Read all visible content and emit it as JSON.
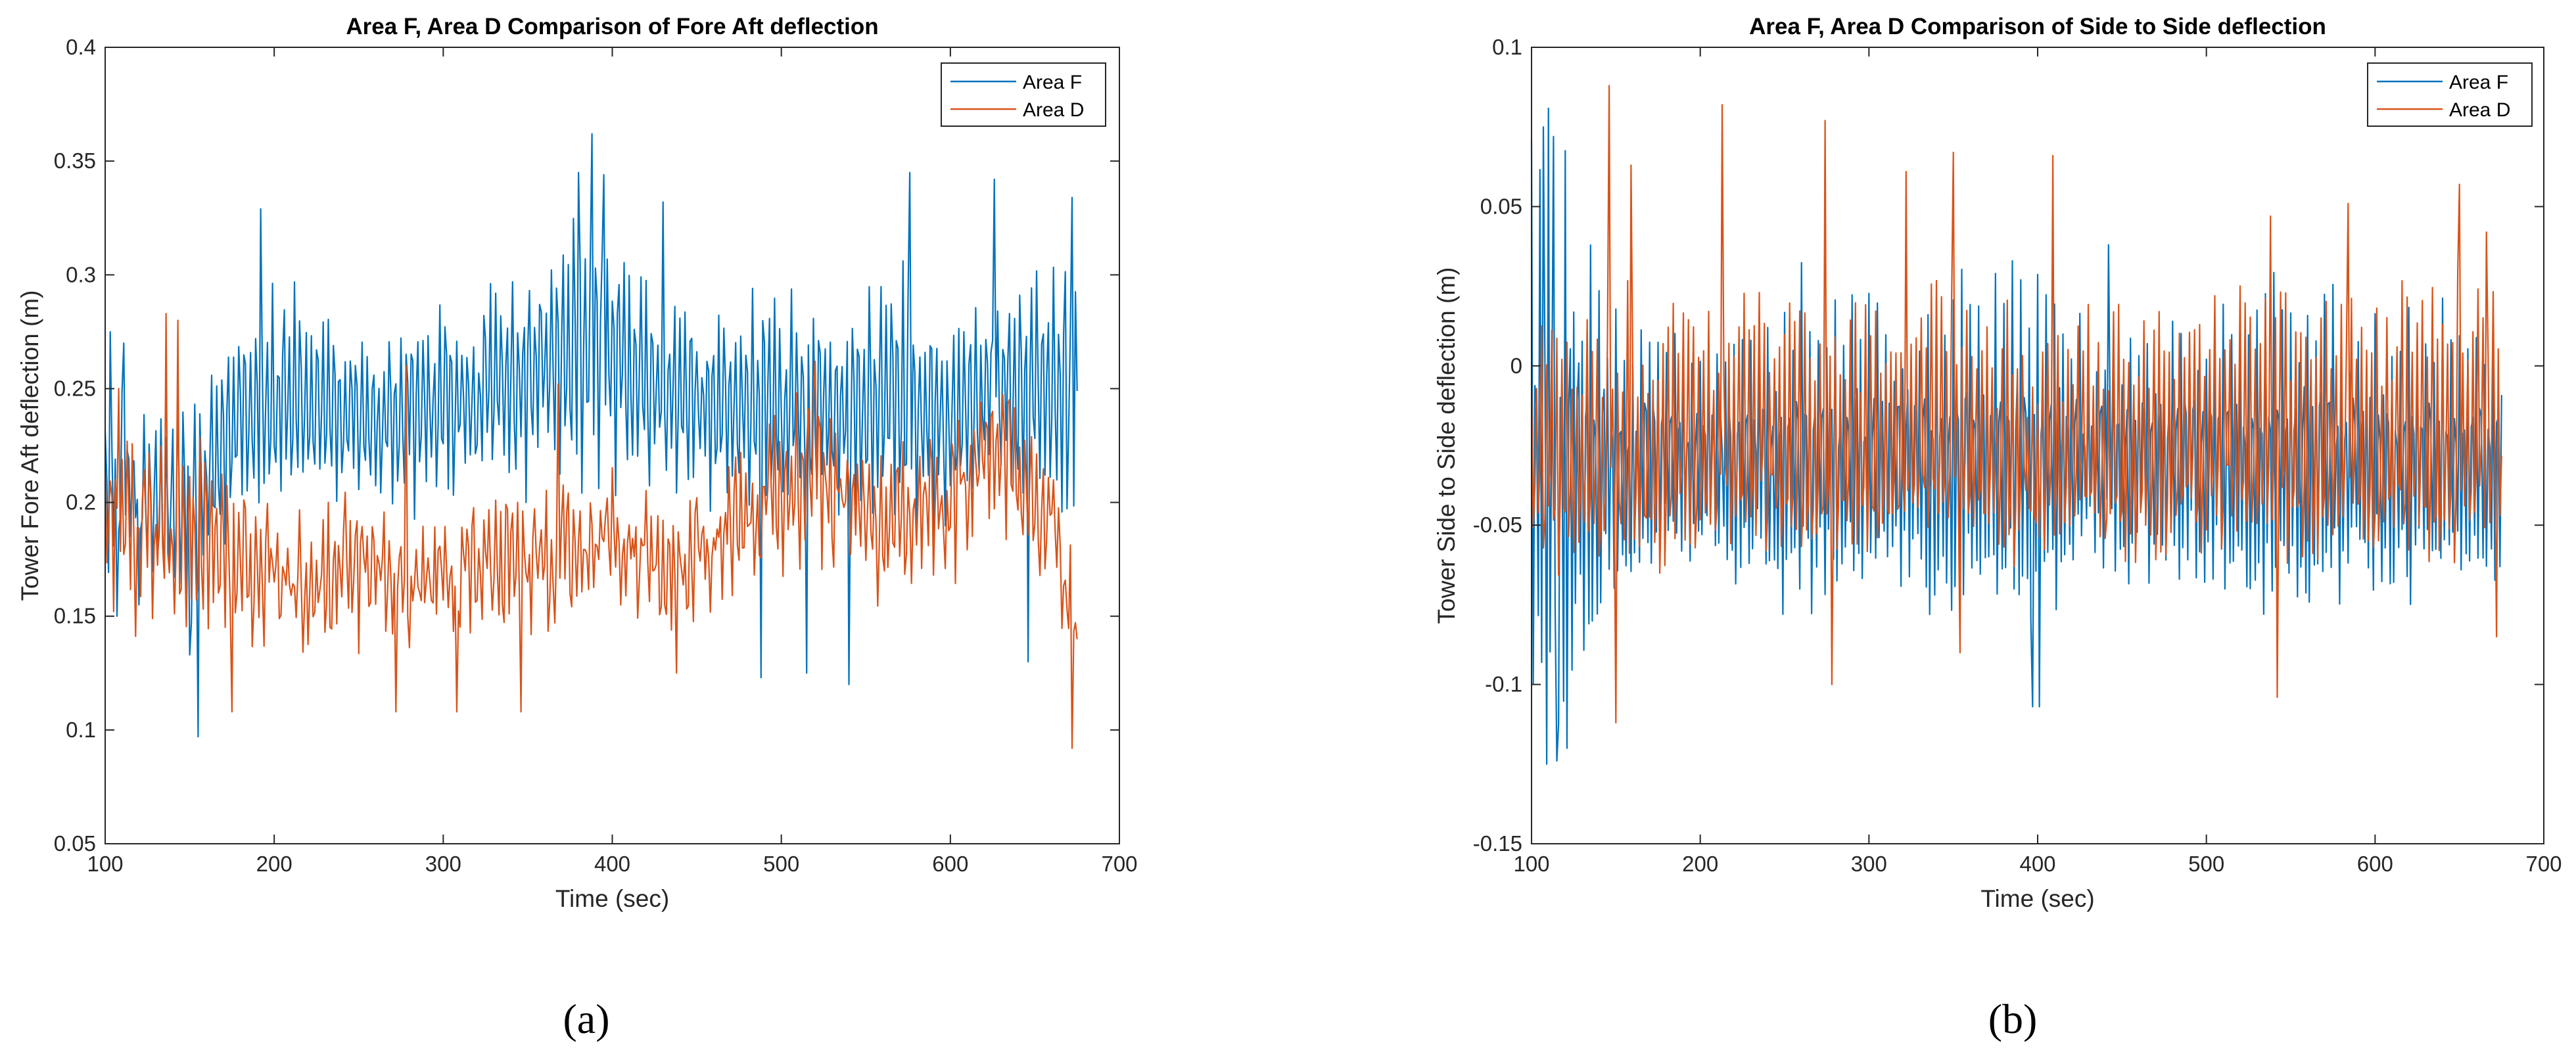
{
  "colors": {
    "area_f": "#0072BD",
    "area_d": "#D95319",
    "axis": "#262626"
  },
  "chart_data": [
    {
      "type": "line",
      "panel_label": "(a)",
      "title": "Area F, Area D Comparison of Fore Aft deflection",
      "xlabel": "Time (sec)",
      "ylabel": "Tower Fore Aft deflection (m)",
      "xlim": [
        100,
        700
      ],
      "ylim": [
        0.05,
        0.4
      ],
      "xticks": [
        100,
        200,
        300,
        400,
        500,
        600,
        700
      ],
      "xtick_labels": [
        "100",
        "200",
        "300",
        "400",
        "500",
        "600",
        "700"
      ],
      "yticks": [
        0.05,
        0.1,
        0.15,
        0.2,
        0.25,
        0.3,
        0.35,
        0.4
      ],
      "ytick_labels": [
        "0.05",
        "0.1",
        "0.15",
        "0.2",
        "0.25",
        "0.3",
        "0.35",
        "0.4"
      ],
      "legend_position": "top-right",
      "x_start": 100,
      "x_end": 675,
      "x_step": 1,
      "series": [
        {
          "name": "Area F",
          "color": "#0072BD",
          "period": 3.3,
          "noise": 0.012,
          "envelope": [
            [
              100,
              0.21,
              0.035
            ],
            [
              130,
              0.205,
              0.035
            ],
            [
              150,
              0.195,
              0.05
            ],
            [
              180,
              0.24,
              0.04
            ],
            [
              210,
              0.245,
              0.045
            ],
            [
              250,
              0.235,
              0.03
            ],
            [
              280,
              0.24,
              0.035
            ],
            [
              320,
              0.245,
              0.04
            ],
            [
              360,
              0.26,
              0.045
            ],
            [
              390,
              0.27,
              0.055
            ],
            [
              420,
              0.25,
              0.04
            ],
            [
              460,
              0.24,
              0.04
            ],
            [
              490,
              0.245,
              0.045
            ],
            [
              520,
              0.24,
              0.04
            ],
            [
              560,
              0.245,
              0.05
            ],
            [
              600,
              0.235,
              0.045
            ],
            [
              630,
              0.25,
              0.035
            ],
            [
              650,
              0.255,
              0.05
            ],
            [
              675,
              0.245,
              0.06
            ]
          ],
          "extremes": [
            [
              103,
              0.275
            ],
            [
              107,
              0.15
            ],
            [
              111,
              0.27
            ],
            [
              120,
              0.155
            ],
            [
              150,
              0.133
            ],
            [
              155,
              0.097
            ],
            [
              192,
              0.329
            ],
            [
              380,
              0.345
            ],
            [
              388,
              0.362
            ],
            [
              395,
              0.344
            ],
            [
              430,
              0.332
            ],
            [
              488,
              0.123
            ],
            [
              515,
              0.125
            ],
            [
              540,
              0.12
            ],
            [
              576,
              0.345
            ],
            [
              626,
              0.342
            ],
            [
              646,
              0.13
            ],
            [
              672,
              0.334
            ]
          ]
        },
        {
          "name": "Area D",
          "color": "#D95319",
          "period": 3.3,
          "noise": 0.018,
          "envelope": [
            [
              100,
              0.19,
              0.025
            ],
            [
              130,
              0.19,
              0.03
            ],
            [
              160,
              0.18,
              0.03
            ],
            [
              200,
              0.165,
              0.02
            ],
            [
              240,
              0.17,
              0.02
            ],
            [
              280,
              0.165,
              0.02
            ],
            [
              320,
              0.17,
              0.02
            ],
            [
              360,
              0.175,
              0.02
            ],
            [
              400,
              0.185,
              0.02
            ],
            [
              440,
              0.17,
              0.02
            ],
            [
              480,
              0.195,
              0.02
            ],
            [
              520,
              0.215,
              0.03
            ],
            [
              560,
              0.19,
              0.025
            ],
            [
              600,
              0.2,
              0.025
            ],
            [
              630,
              0.22,
              0.025
            ],
            [
              660,
              0.19,
              0.02
            ],
            [
              675,
              0.14,
              0.015
            ]
          ],
          "extremes": [
            [
              108,
              0.25
            ],
            [
              136,
              0.283
            ],
            [
              143,
              0.28
            ],
            [
              175,
              0.108
            ],
            [
              272,
              0.108
            ],
            [
              278,
              0.26
            ],
            [
              308,
              0.108
            ],
            [
              346,
              0.108
            ],
            [
              368,
              0.252
            ],
            [
              438,
              0.125
            ],
            [
              520,
              0.262
            ],
            [
              672,
              0.092
            ]
          ]
        }
      ]
    },
    {
      "type": "line",
      "panel_label": "(b)",
      "title": "Area F, Area D Comparison of Side to Side deflection",
      "xlabel": "Time (sec)",
      "ylabel": "Tower Side to Side deflection (m)",
      "xlim": [
        100,
        700
      ],
      "ylim": [
        -0.15,
        0.1
      ],
      "xticks": [
        100,
        200,
        300,
        400,
        500,
        600,
        700
      ],
      "xtick_labels": [
        "100",
        "200",
        "300",
        "400",
        "500",
        "600",
        "700"
      ],
      "yticks": [
        -0.15,
        -0.1,
        -0.05,
        0,
        0.05,
        0.1
      ],
      "ytick_labels": [
        "-0.15",
        "-0.1",
        "-0.05",
        "0",
        "0.05",
        "0.1"
      ],
      "legend_position": "top-right",
      "x_start": 100,
      "x_end": 675,
      "x_step": 1,
      "series": [
        {
          "name": "Area F",
          "color": "#0072BD",
          "period": 2.5,
          "noise": 0.006,
          "envelope": [
            [
              100,
              -0.03,
              0.09
            ],
            [
              110,
              -0.03,
              0.1
            ],
            [
              125,
              -0.03,
              0.08
            ],
            [
              145,
              -0.03,
              0.05
            ],
            [
              170,
              -0.028,
              0.035
            ],
            [
              200,
              -0.028,
              0.03
            ],
            [
              230,
              -0.03,
              0.04
            ],
            [
              260,
              -0.03,
              0.055
            ],
            [
              300,
              -0.028,
              0.045
            ],
            [
              340,
              -0.03,
              0.05
            ],
            [
              380,
              -0.028,
              0.055
            ],
            [
              400,
              -0.03,
              0.06
            ],
            [
              420,
              -0.028,
              0.045
            ],
            [
              460,
              -0.028,
              0.04
            ],
            [
              500,
              -0.03,
              0.045
            ],
            [
              540,
              -0.028,
              0.05
            ],
            [
              580,
              -0.028,
              0.045
            ],
            [
              620,
              -0.03,
              0.045
            ],
            [
              660,
              -0.03,
              0.04
            ],
            [
              675,
              -0.03,
              0.035
            ]
          ],
          "extremes": [
            [
              107,
              0.075
            ],
            [
              109,
              -0.125
            ],
            [
              113,
              0.072
            ],
            [
              115,
              -0.124
            ],
            [
              121,
              -0.12
            ],
            [
              397,
              -0.107
            ],
            [
              401,
              -0.107
            ],
            [
              442,
              0.038
            ]
          ]
        },
        {
          "name": "Area D",
          "color": "#D95319",
          "period": 3.0,
          "noise": 0.01,
          "envelope": [
            [
              100,
              -0.03,
              0.035
            ],
            [
              140,
              -0.03,
              0.045
            ],
            [
              200,
              -0.025,
              0.04
            ],
            [
              260,
              -0.025,
              0.045
            ],
            [
              300,
              -0.028,
              0.04
            ],
            [
              350,
              -0.025,
              0.04
            ],
            [
              400,
              -0.028,
              0.035
            ],
            [
              450,
              -0.025,
              0.04
            ],
            [
              500,
              -0.025,
              0.04
            ],
            [
              550,
              -0.025,
              0.04
            ],
            [
              600,
              -0.025,
              0.04
            ],
            [
              650,
              -0.025,
              0.045
            ],
            [
              675,
              -0.02,
              0.04
            ]
          ],
          "extremes": [
            [
              146,
              0.088
            ],
            [
              150,
              -0.112
            ],
            [
              159,
              0.063
            ],
            [
              213,
              0.082
            ],
            [
              274,
              0.077
            ],
            [
              278,
              -0.1
            ],
            [
              322,
              0.061
            ],
            [
              350,
              0.067
            ],
            [
              354,
              -0.09
            ],
            [
              409,
              0.066
            ],
            [
              538,
              0.047
            ],
            [
              542,
              -0.104
            ],
            [
              584,
              0.051
            ],
            [
              650,
              0.057
            ],
            [
              666,
              0.042
            ],
            [
              672,
              -0.085
            ]
          ]
        }
      ]
    }
  ]
}
